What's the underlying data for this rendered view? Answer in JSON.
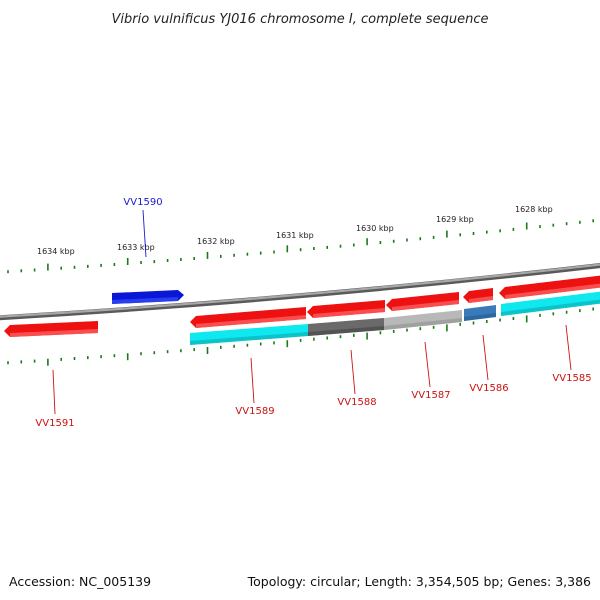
{
  "title": "Vibrio vulnificus YJ016 chromosome I, complete sequence",
  "footer": {
    "accession": "Accession: NC_005139",
    "summary": "Topology: circular; Length: 3,354,505 bp; Genes: 3,386"
  },
  "ruler": {
    "unit": "kbp",
    "labels": [
      "1634 kbp",
      "1633 kbp",
      "1632 kbp",
      "1631 kbp",
      "1630 kbp",
      "1629 kbp",
      "1628 kbp"
    ]
  },
  "genes": [
    {
      "name": "VV1590",
      "strand": "+",
      "color": "#0a17d6",
      "label_color": "#1a1ad0"
    },
    {
      "name": "VV1591",
      "strand": "-",
      "color": "#ee1111",
      "label_color": "#cc1111"
    },
    {
      "name": "VV1589",
      "strand": "-",
      "color": "#ee1111",
      "label_color": "#cc1111"
    },
    {
      "name": "VV1588",
      "strand": "-",
      "color": "#ee1111",
      "label_color": "#cc1111"
    },
    {
      "name": "VV1587",
      "strand": "-",
      "color": "#ee1111",
      "label_color": "#cc1111"
    },
    {
      "name": "VV1586",
      "strand": "-",
      "color": "#ee1111",
      "label_color": "#cc1111"
    },
    {
      "name": "VV1585",
      "strand": "-",
      "color": "#ee1111",
      "label_color": "#cc1111"
    }
  ],
  "colors": {
    "backbone": "#8a8a8a",
    "ticks": "#1a7a1a",
    "cds_cyan": "#10e8f0",
    "cds_dark_gray": "#6a6a6a",
    "cds_light_gray": "#b8b8b8",
    "cds_steel_blue": "#3a7ab8"
  }
}
